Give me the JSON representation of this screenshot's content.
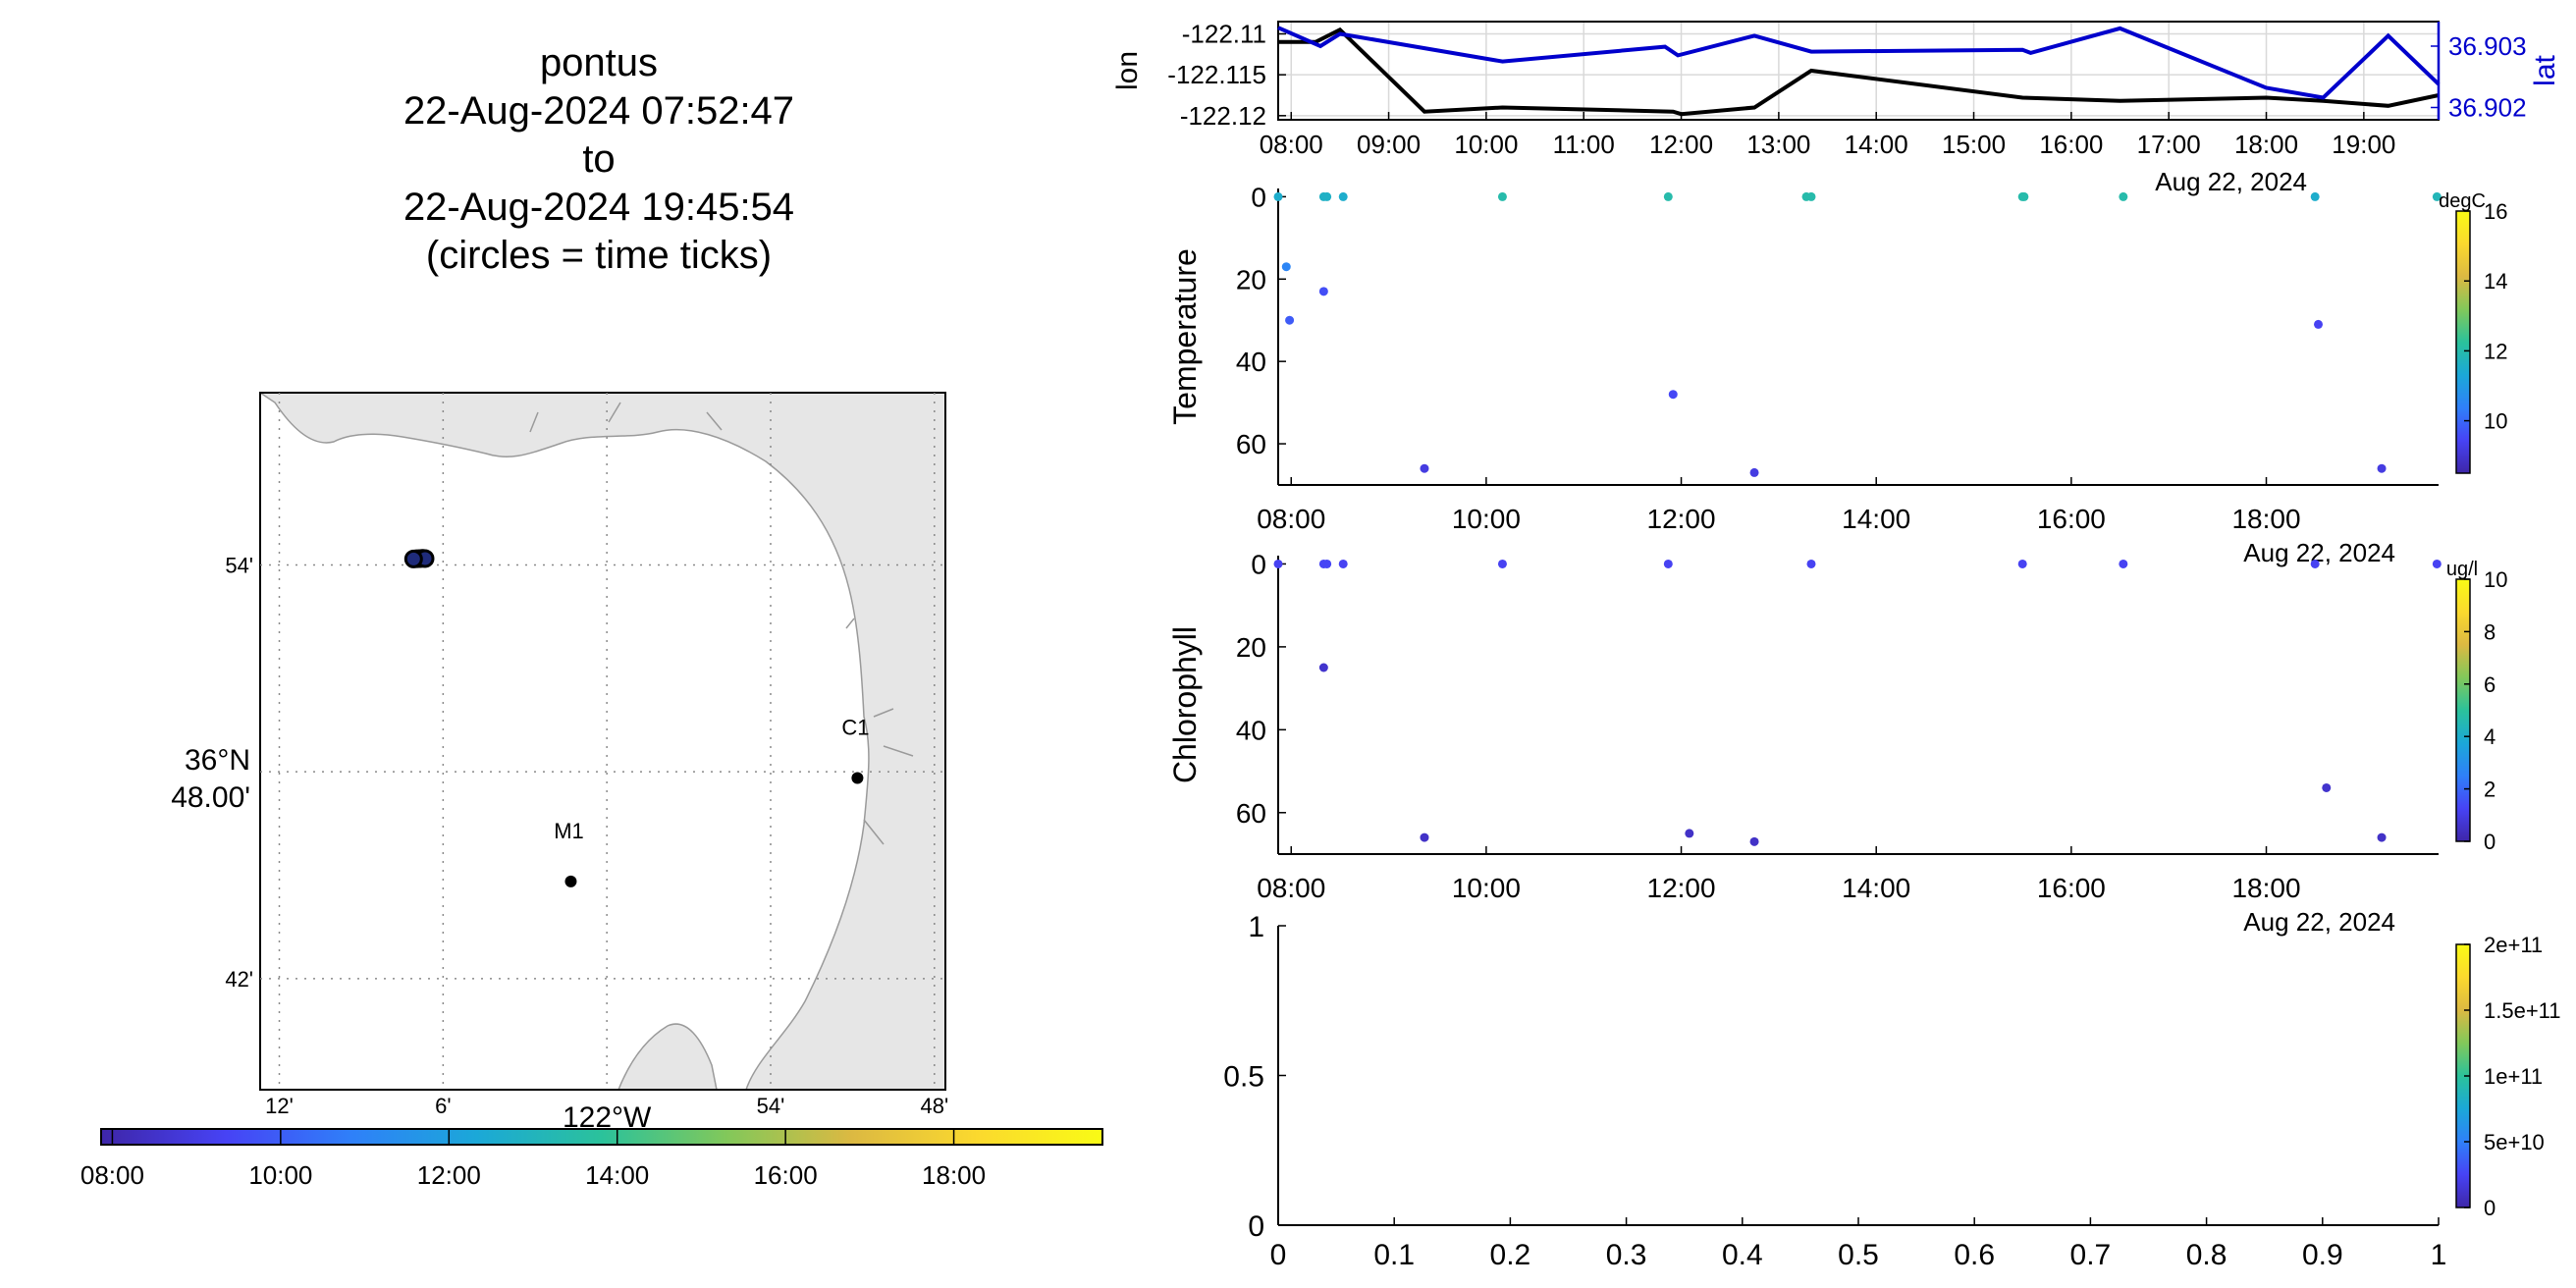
{
  "title": {
    "vehicle": "pontus",
    "start": "22-Aug-2024 07:52:47",
    "to": "to",
    "end": "22-Aug-2024 19:45:54",
    "note": "(circles = time ticks)"
  },
  "colors": {
    "land": "#e6e6e6",
    "lon_line": "#000000",
    "lat_line": "#0000cc",
    "colormap": [
      "#3e26a8",
      "#4743f5",
      "#2f80f9",
      "#1ba8d8",
      "#2bc29b",
      "#82c85a",
      "#dcb942",
      "#fbd92e",
      "#f9fb15"
    ]
  },
  "map": {
    "lat_ticks": [
      "54'",
      "36°N|48.00'",
      "42'"
    ],
    "lon_ticks": [
      "12'",
      "6'",
      "122°W",
      "54'",
      "48'"
    ],
    "stations": [
      {
        "name": "M1",
        "lat": 36.747,
        "lon": -122.022
      },
      {
        "name": "C1",
        "lat": 36.797,
        "lon": -121.847
      }
    ],
    "track_points": [
      {
        "lat": 36.903,
        "lon": -122.116
      },
      {
        "lat": 36.9031,
        "lon": -122.114
      },
      {
        "lat": 36.9032,
        "lon": -122.1125
      },
      {
        "lat": 36.9031,
        "lon": -122.111
      },
      {
        "lat": 36.9029,
        "lon": -122.118
      }
    ],
    "colorbar_ticks": [
      "08:00",
      "10:00",
      "12:00",
      "14:00",
      "16:00",
      "18:00"
    ]
  },
  "chart_data": [
    {
      "type": "line",
      "panel": "position",
      "x_ticks": [
        "08:00",
        "09:00",
        "10:00",
        "11:00",
        "12:00",
        "13:00",
        "14:00",
        "15:00",
        "16:00",
        "17:00",
        "18:00",
        "19:00"
      ],
      "date_label": "Aug 22, 2024",
      "ylabel": "lon",
      "y2label": "lat",
      "ylim": [
        -122.1205,
        -122.1085
      ],
      "y_ticks": [
        "-122.11",
        "-122.115",
        "-122.12"
      ],
      "y2lim": [
        36.9018,
        36.9034
      ],
      "y2_ticks": [
        "36.903",
        "36.902"
      ],
      "series": [
        {
          "name": "lon",
          "axis": "left",
          "x": [
            "07:52",
            "08:15",
            "08:30",
            "09:22",
            "10:10",
            "11:55",
            "12:00",
            "12:45",
            "13:20",
            "15:30",
            "16:30",
            "18:00",
            "18:35",
            "19:15",
            "19:46"
          ],
          "values": [
            -122.111,
            -122.111,
            -122.1095,
            -122.1195,
            -122.119,
            -122.1195,
            -122.1198,
            -122.119,
            -122.1145,
            -122.1178,
            -122.1182,
            -122.1178,
            -122.1182,
            -122.1188,
            -122.1175
          ]
        },
        {
          "name": "lat",
          "axis": "right",
          "x": [
            "07:52",
            "08:18",
            "08:30",
            "10:10",
            "11:50",
            "11:58",
            "12:45",
            "13:20",
            "15:30",
            "15:35",
            "16:30",
            "18:00",
            "18:35",
            "19:15",
            "19:46"
          ],
          "values": [
            36.9033,
            36.903,
            36.9032,
            36.90275,
            36.90299,
            36.90285,
            36.90317,
            36.90291,
            36.90294,
            36.90289,
            36.90329,
            36.90232,
            36.90216,
            36.90317,
            36.90238
          ]
        }
      ]
    },
    {
      "type": "scatter",
      "panel": "temperature",
      "ylabel": "Temperature",
      "ylim": [
        70,
        -2
      ],
      "y_ticks": [
        "0",
        "20",
        "40",
        "60"
      ],
      "x_ticks": [
        "08:00",
        "10:00",
        "12:00",
        "14:00",
        "16:00",
        "18:00"
      ],
      "date_label": "Aug 22, 2024",
      "colorbar": {
        "label": "degC",
        "range": [
          8.5,
          16
        ],
        "ticks": [
          "16",
          "14",
          "12",
          "10"
        ]
      },
      "points": [
        {
          "t": "07:52",
          "depth": 0,
          "value": 11.5
        },
        {
          "t": "07:57",
          "depth": 17,
          "value": 10.5
        },
        {
          "t": "07:59",
          "depth": 30,
          "value": 9.8
        },
        {
          "t": "08:20",
          "depth": 0,
          "value": 11.6
        },
        {
          "t": "08:22",
          "depth": 0,
          "value": 11.6
        },
        {
          "t": "08:20",
          "depth": 23,
          "value": 9.6
        },
        {
          "t": "08:32",
          "depth": 0,
          "value": 11.5
        },
        {
          "t": "09:22",
          "depth": 66,
          "value": 9.2
        },
        {
          "t": "10:10",
          "depth": 0,
          "value": 12.0
        },
        {
          "t": "11:52",
          "depth": 0,
          "value": 12.0
        },
        {
          "t": "11:55",
          "depth": 48,
          "value": 9.5
        },
        {
          "t": "12:45",
          "depth": 67,
          "value": 9.2
        },
        {
          "t": "13:17",
          "depth": 0,
          "value": 12.0
        },
        {
          "t": "13:20",
          "depth": 0,
          "value": 12.0
        },
        {
          "t": "15:30",
          "depth": 0,
          "value": 12.0
        },
        {
          "t": "15:31",
          "depth": 0,
          "value": 12.0
        },
        {
          "t": "16:32",
          "depth": 0,
          "value": 12.0
        },
        {
          "t": "18:30",
          "depth": 0,
          "value": 11.5
        },
        {
          "t": "18:32",
          "depth": 31,
          "value": 9.4
        },
        {
          "t": "19:11",
          "depth": 66,
          "value": 9.2
        },
        {
          "t": "19:45",
          "depth": 0,
          "value": 11.8
        }
      ]
    },
    {
      "type": "scatter",
      "panel": "chlorophyll",
      "ylabel": "Chlorophyll",
      "ylim": [
        70,
        -2
      ],
      "y_ticks": [
        "0",
        "20",
        "40",
        "60"
      ],
      "x_ticks": [
        "08:00",
        "10:00",
        "12:00",
        "14:00",
        "16:00",
        "18:00"
      ],
      "date_label": "Aug 22, 2024",
      "colorbar": {
        "label": "ug/l",
        "range": [
          0,
          10
        ],
        "ticks": [
          "10",
          "8",
          "6",
          "4",
          "2",
          "0"
        ]
      },
      "points": [
        {
          "t": "07:52",
          "depth": 0,
          "value": 1.2
        },
        {
          "t": "08:20",
          "depth": 0,
          "value": 1.3
        },
        {
          "t": "08:22",
          "depth": 0,
          "value": 1.3
        },
        {
          "t": "08:20",
          "depth": 25,
          "value": 0.6
        },
        {
          "t": "08:32",
          "depth": 0,
          "value": 1.2
        },
        {
          "t": "09:22",
          "depth": 66,
          "value": 0.5
        },
        {
          "t": "10:10",
          "depth": 0,
          "value": 1.2
        },
        {
          "t": "11:52",
          "depth": 0,
          "value": 1.2
        },
        {
          "t": "12:05",
          "depth": 65,
          "value": 0.5
        },
        {
          "t": "12:45",
          "depth": 67,
          "value": 0.5
        },
        {
          "t": "13:20",
          "depth": 0,
          "value": 1.2
        },
        {
          "t": "15:30",
          "depth": 0,
          "value": 1.2
        },
        {
          "t": "16:32",
          "depth": 0,
          "value": 1.2
        },
        {
          "t": "18:30",
          "depth": 0,
          "value": 1.2
        },
        {
          "t": "18:37",
          "depth": 54,
          "value": 0.6
        },
        {
          "t": "19:11",
          "depth": 66,
          "value": 0.5
        },
        {
          "t": "19:45",
          "depth": 0,
          "value": 1.2
        }
      ]
    },
    {
      "type": "scatter",
      "panel": "empty",
      "xlim": [
        0,
        1
      ],
      "ylim": [
        0,
        1
      ],
      "x_ticks": [
        "0",
        "0.1",
        "0.2",
        "0.3",
        "0.4",
        "0.5",
        "0.6",
        "0.7",
        "0.8",
        "0.9",
        "1"
      ],
      "y_ticks": [
        "0",
        "0.5",
        "1"
      ],
      "colorbar": {
        "label": "",
        "range": [
          0,
          200000000000.0
        ],
        "ticks": [
          "2e+11",
          "1.5e+11",
          "1e+11",
          "5e+10",
          "0"
        ]
      },
      "points": []
    }
  ]
}
